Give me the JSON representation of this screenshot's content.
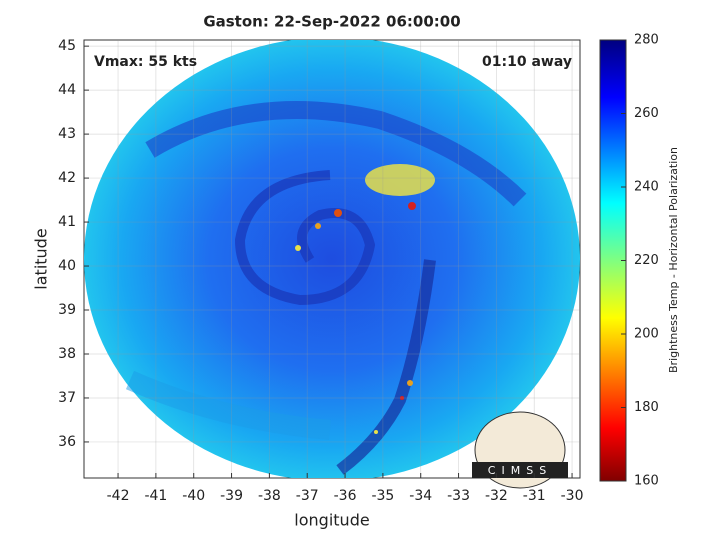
{
  "chart_data": {
    "type": "map",
    "title": "Gaston: 22-Sep-2022 06:00:00",
    "xlabel": "longitude",
    "ylabel": "latitude",
    "annotations": [
      "Vmax: 55 kts",
      "01:10 away"
    ],
    "logo": "CIMSS",
    "xlim": [
      -42.9,
      -29.79
    ],
    "ylim": [
      35.18,
      45.14
    ],
    "xticks": [
      -42,
      -41,
      -40,
      -39,
      -38,
      -37,
      -36,
      -35,
      -34,
      -33,
      -32,
      -31,
      -30
    ],
    "yticks": [
      36,
      37,
      38,
      39,
      40,
      41,
      42,
      43,
      44,
      45
    ],
    "grid": true,
    "colorbar": {
      "label": "Brightness Temp - Horizontal Polarization",
      "lim": [
        160,
        280
      ],
      "ticks": [
        160,
        180,
        200,
        220,
        240,
        260,
        280
      ]
    }
  }
}
